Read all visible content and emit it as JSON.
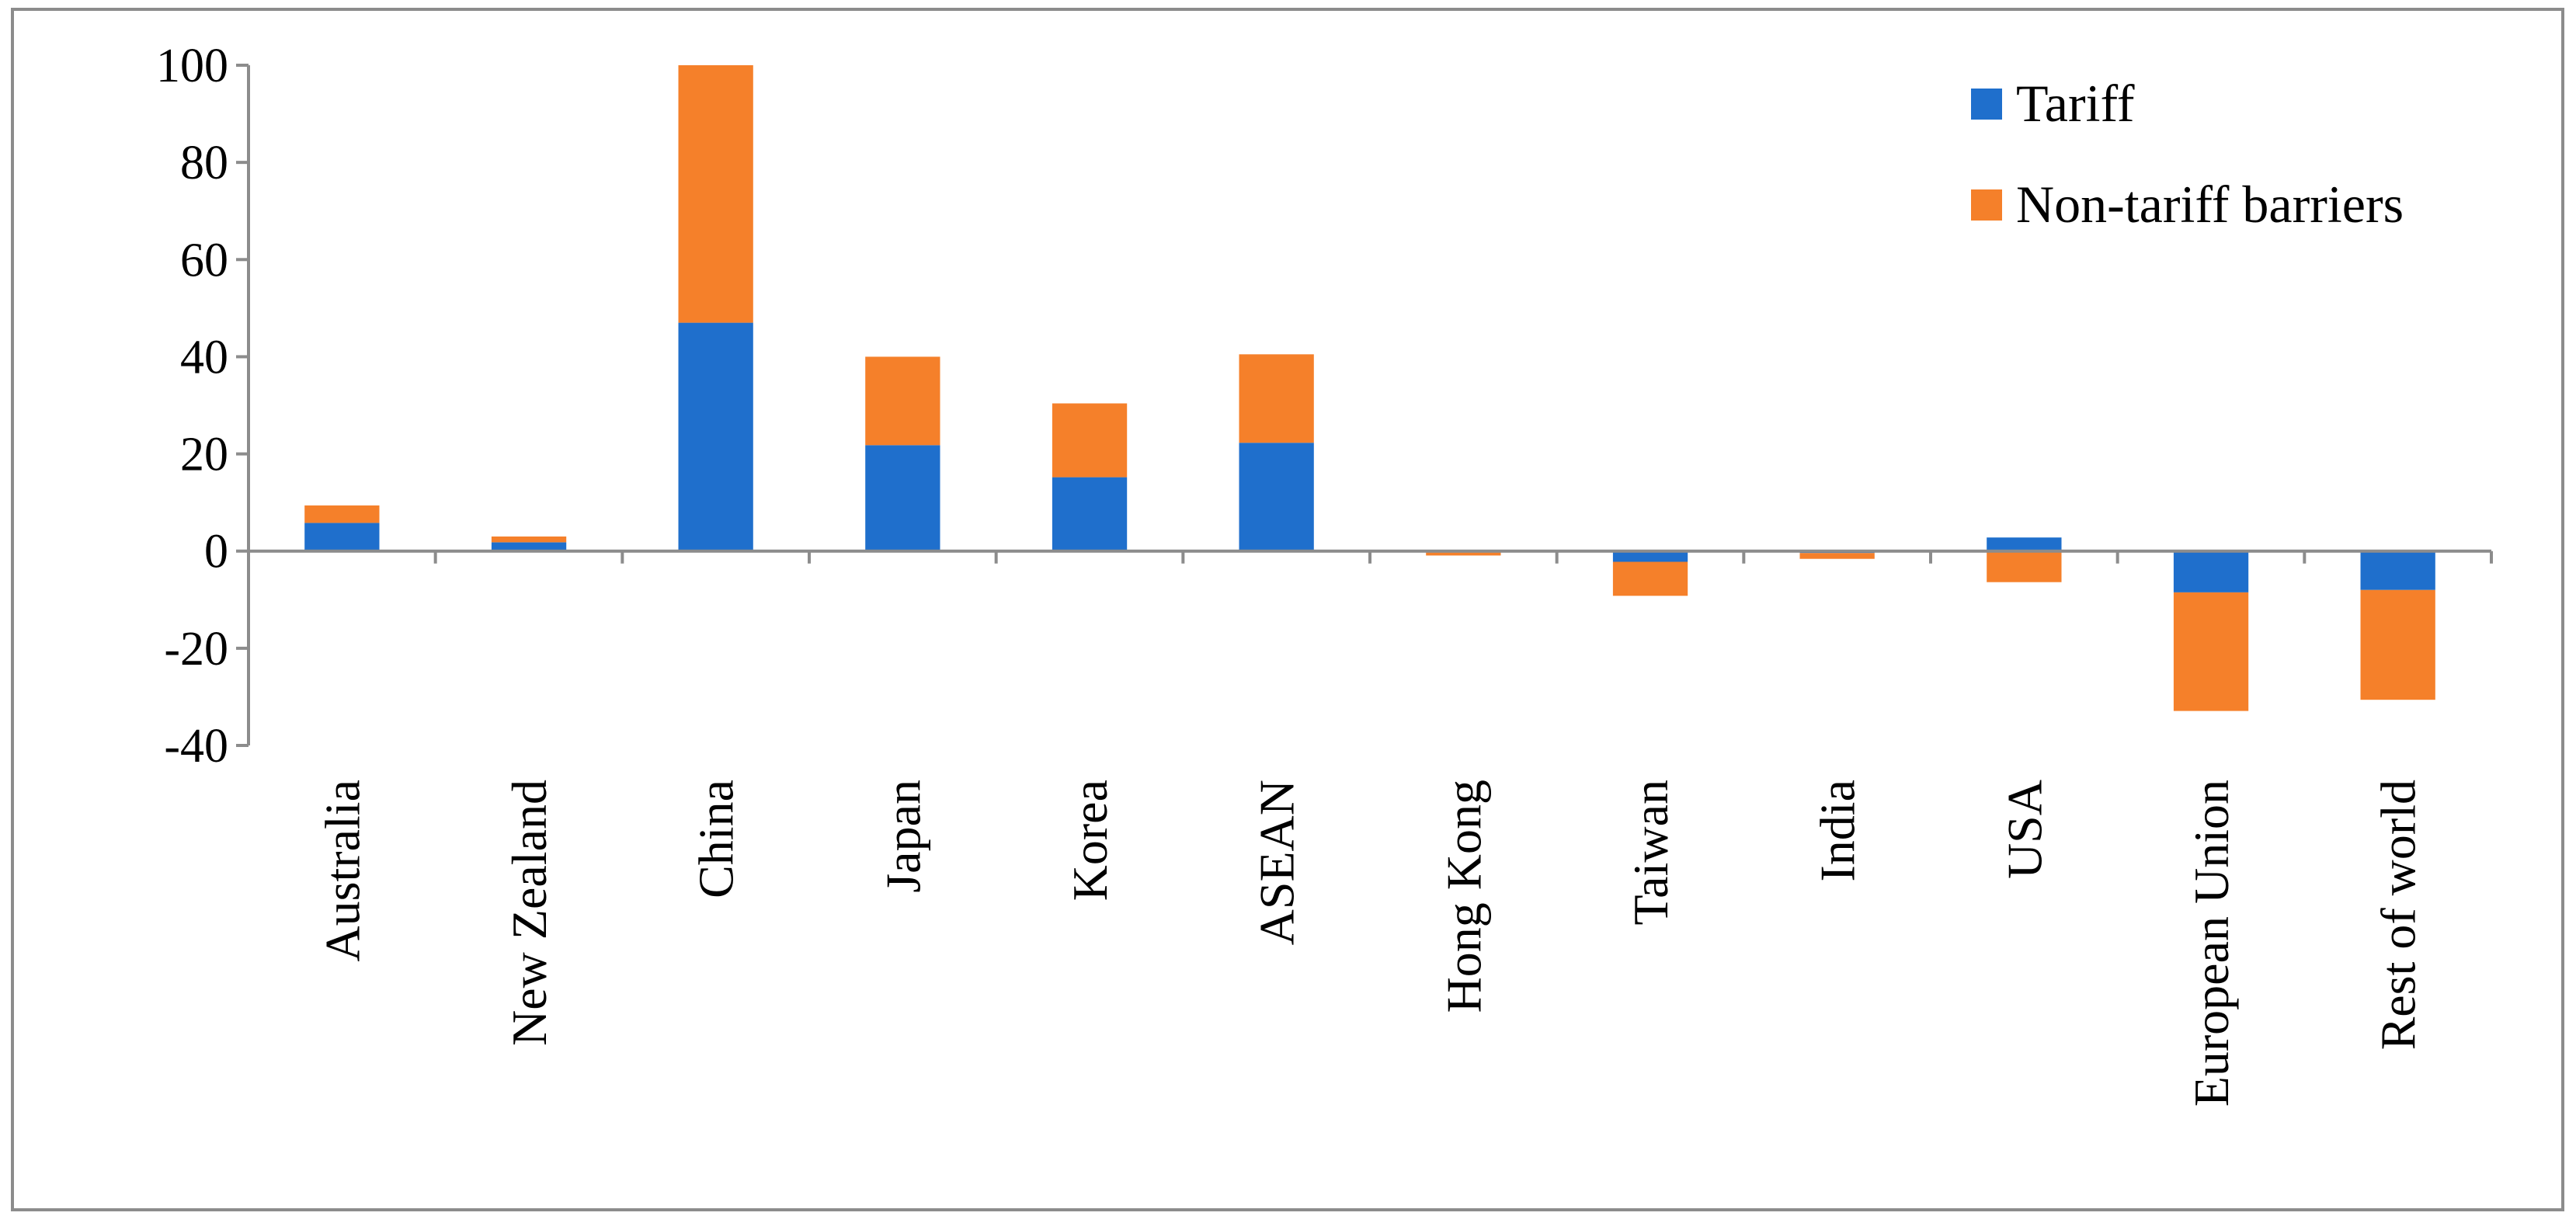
{
  "chart_data": {
    "type": "bar",
    "stacked": true,
    "title": "",
    "xlabel": "",
    "ylabel": "",
    "ylim": [
      -40,
      100
    ],
    "yticks": [
      100,
      80,
      60,
      40,
      20,
      0,
      -20,
      -40
    ],
    "ytick_labels": [
      "100",
      "80",
      "60",
      "40",
      "20",
      "0",
      "-20",
      "-40"
    ],
    "categories": [
      "Australia",
      "New Zealand",
      "China",
      "Japan",
      "Korea",
      "ASEAN",
      "Hong Kong",
      "Taiwan",
      "India",
      "USA",
      "European Union",
      "Rest of world"
    ],
    "series": [
      {
        "name": "Tariff",
        "color": "#1f6fcc",
        "values": [
          5.8,
          1.8,
          47,
          21.8,
          15.2,
          22.3,
          -0.3,
          -2.2,
          -0.4,
          2.8,
          -8.5,
          -8
        ]
      },
      {
        "name": "Non-tariff barriers",
        "color": "#f5802a",
        "values": [
          3.6,
          1.2,
          53,
          18.2,
          15.2,
          18.2,
          -0.6,
          -7,
          -1.2,
          -6.4,
          -24.4,
          -22.6
        ]
      }
    ],
    "legend_position": "top-right",
    "grid": false
  }
}
